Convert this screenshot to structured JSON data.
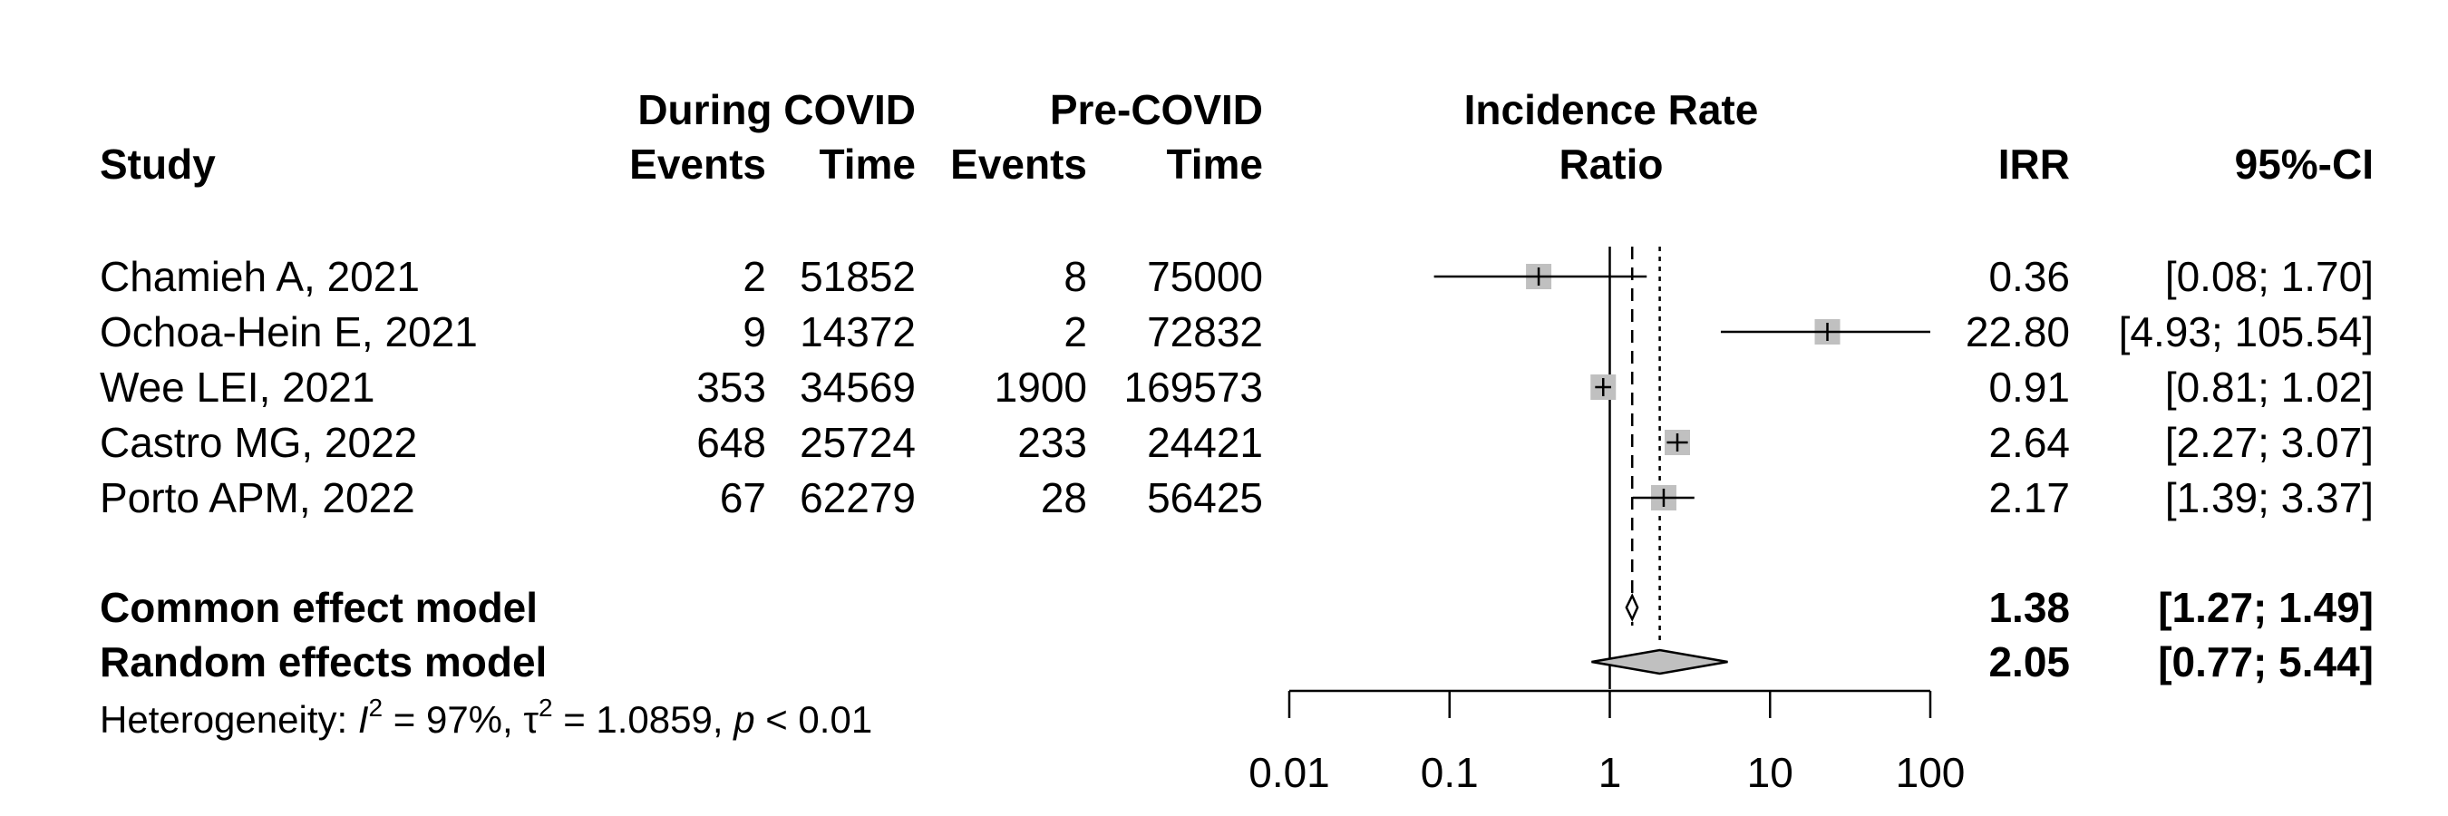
{
  "chart_data": {
    "type": "forest",
    "xlabel": "",
    "x_scale": "log",
    "xlim": [
      0.01,
      100
    ],
    "x_ticks": [
      "0.01",
      "0.1",
      "1",
      "10",
      "100"
    ],
    "reference_line": 1,
    "header": {
      "study": "Study",
      "group1": "During COVID",
      "group2": "Pre-COVID",
      "events": "Events",
      "time": "Time",
      "plot_title_line1": "Incidence Rate",
      "plot_title_line2": "Ratio",
      "irr": "IRR",
      "ci": "95%-CI"
    },
    "studies": [
      {
        "study": "Chamieh A, 2021",
        "events1": "2",
        "time1": "51852",
        "events2": "8",
        "time2": "75000",
        "irr": 0.36,
        "lower": 0.08,
        "upper": 1.7,
        "irr_text": "0.36",
        "ci_text": "[0.08;  1.70]",
        "box_size": 1.0
      },
      {
        "study": "Ochoa-Hein E, 2021",
        "events1": "9",
        "time1": "14372",
        "events2": "2",
        "time2": "72832",
        "irr": 22.8,
        "lower": 4.93,
        "upper": 105.54,
        "irr_text": "22.80",
        "ci_text": "[4.93; 105.54]",
        "box_size": 1.0
      },
      {
        "study": "Wee LEI, 2021",
        "events1": "353",
        "time1": "34569",
        "events2": "1900",
        "time2": "169573",
        "irr": 0.91,
        "lower": 0.81,
        "upper": 1.02,
        "irr_text": "0.91",
        "ci_text": "[0.81;  1.02]",
        "box_size": 1.0
      },
      {
        "study": "Castro MG, 2022",
        "events1": "648",
        "time1": "25724",
        "events2": "233",
        "time2": "24421",
        "irr": 2.64,
        "lower": 2.27,
        "upper": 3.07,
        "irr_text": "2.64",
        "ci_text": "[2.27;  3.07]",
        "box_size": 1.0
      },
      {
        "study": "Porto APM, 2022",
        "events1": "67",
        "time1": "62279",
        "events2": "28",
        "time2": "56425",
        "irr": 2.17,
        "lower": 1.39,
        "upper": 3.37,
        "irr_text": "2.17",
        "ci_text": "[1.39;  3.37]",
        "box_size": 1.0
      }
    ],
    "models": [
      {
        "label": "Common effect model",
        "irr": 1.38,
        "lower": 1.27,
        "upper": 1.49,
        "irr_text": "1.38",
        "ci_text": "[1.27;  1.49]",
        "fill": "#ffffff"
      },
      {
        "label": "Random effects model",
        "irr": 2.05,
        "lower": 0.77,
        "upper": 5.44,
        "irr_text": "2.05",
        "ci_text": "[0.77;  5.44]",
        "fill": "#c0c0c0"
      }
    ],
    "heterogeneity": {
      "prefix": "Heterogeneity: ",
      "i2_symbol": "I",
      "i2_value": " = 97%, ",
      "tau_symbol": "τ",
      "tau_value": " = 1.0859, ",
      "p_symbol": "p",
      "p_value": " < 0.01",
      "superscript": "2"
    },
    "colors": {
      "box": "#c0c0c0",
      "line": "#000000",
      "diamond_random": "#c0c0c0",
      "diamond_common": "#ffffff"
    }
  }
}
